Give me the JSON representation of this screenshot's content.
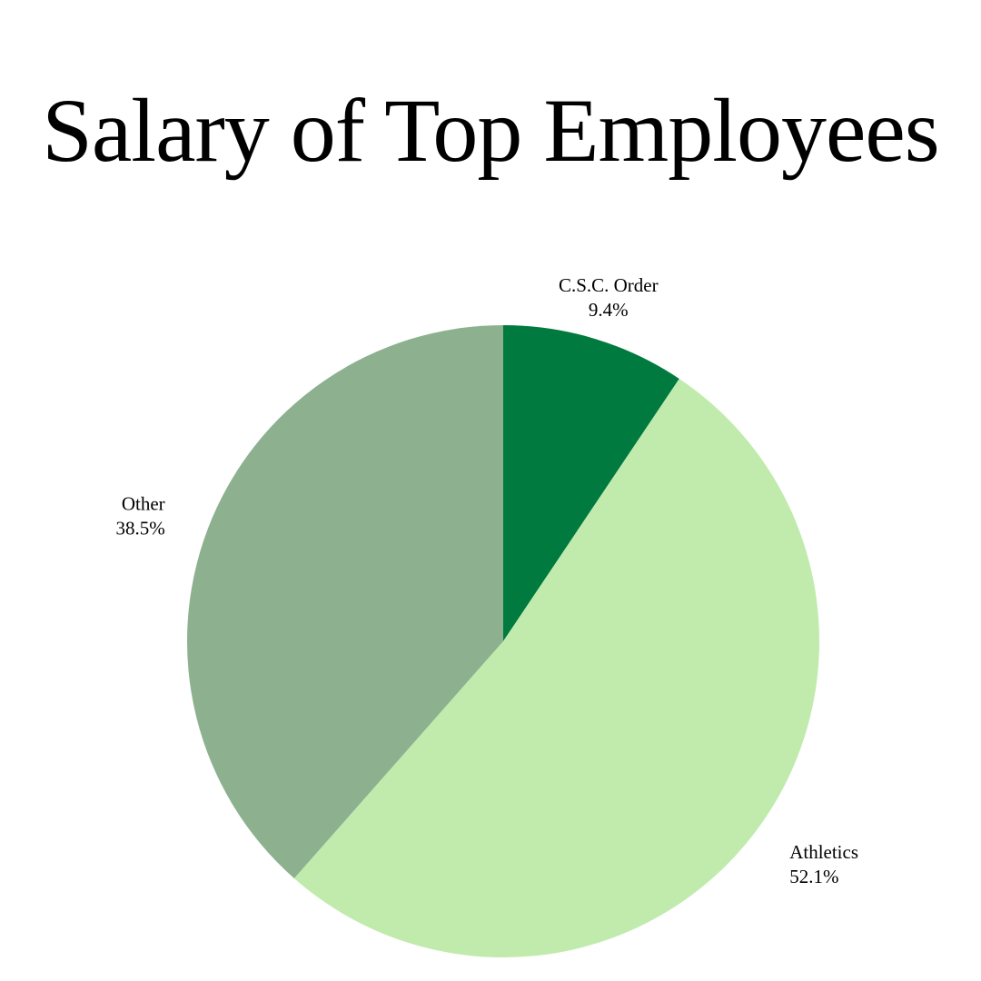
{
  "chart_data": {
    "type": "pie",
    "title": "Salary of Top Employees",
    "slices": [
      {
        "label": "C.S.C. Order",
        "value": 9.4,
        "value_label": "9.4%",
        "color": "#007a3f"
      },
      {
        "label": "Athletics",
        "value": 52.1,
        "value_label": "52.1%",
        "color": "#c0ebac"
      },
      {
        "label": "Other",
        "value": 38.5,
        "value_label": "38.5%",
        "color": "#8db18f"
      }
    ],
    "start_angle": "12 o'clock",
    "direction": "clockwise",
    "legend": "none"
  }
}
